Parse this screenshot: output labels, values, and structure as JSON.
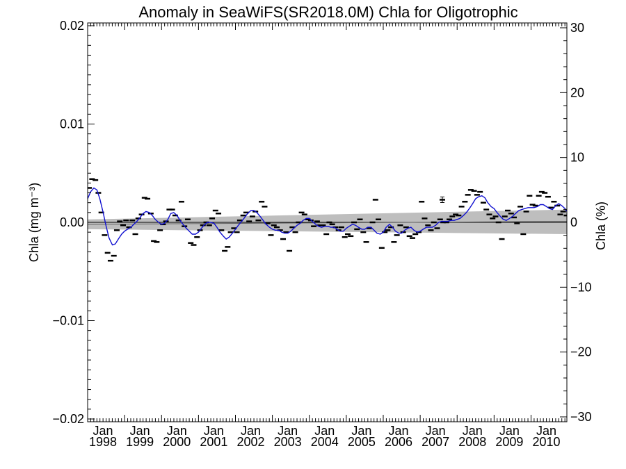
{
  "chart_data": {
    "type": "line",
    "title": "Anomaly in SeaWiFS(SR2018.0M) Chla for Oligotrophic",
    "ylabel_left": "Chla (mg m⁻³)",
    "ylabel_right": "Chla (%)",
    "xlim": [
      1998.0,
      2010.97
    ],
    "ylim_left": [
      -0.0205,
      0.0205
    ],
    "ylim_right": [
      -30,
      30
    ],
    "y_ticks_left": [
      -0.02,
      -0.01,
      0.0,
      0.01,
      0.02
    ],
    "y_tick_labels_left": [
      "−0.02",
      "−0.01",
      "0.00",
      "0.01",
      "0.02"
    ],
    "y_ticks_right": [
      -30,
      -20,
      -10,
      0,
      10,
      20,
      30
    ],
    "y_tick_labels_right": [
      "−30",
      "−20",
      "−10",
      "0",
      "10",
      "20",
      "30"
    ],
    "x_ticks": [
      1998,
      1999,
      2000,
      2001,
      2002,
      2003,
      2004,
      2005,
      2006,
      2007,
      2008,
      2009,
      2010
    ],
    "x_tick_labels": [
      [
        "Jan",
        "1998"
      ],
      [
        "Jan",
        "1999"
      ],
      [
        "Jan",
        "2000"
      ],
      [
        "Jan",
        "2001"
      ],
      [
        "Jan",
        "2002"
      ],
      [
        "Jan",
        "2003"
      ],
      [
        "Jan",
        "2004"
      ],
      [
        "Jan",
        "2005"
      ],
      [
        "Jan",
        "2006"
      ],
      [
        "Jan",
        "2007"
      ],
      [
        "Jan",
        "2008"
      ],
      [
        "Jan",
        "2009"
      ],
      [
        "Jan",
        "2010"
      ]
    ],
    "zero_line": 0.0,
    "trend_band": {
      "x": [
        1998.0,
        2010.97
      ],
      "lower": [
        -0.0007,
        -0.0012
      ],
      "upper": [
        0.0003,
        0.0013
      ],
      "color": "#bebebe"
    },
    "trend_line": {
      "x": [
        1998.0,
        2010.97
      ],
      "y": [
        -0.0002,
        0.0001
      ]
    },
    "series": [
      {
        "style": "monthly-markers",
        "color": "#000000",
        "x": [
          1998.04,
          1998.12,
          1998.21,
          1998.29,
          1998.37,
          1998.46,
          1998.54,
          1998.62,
          1998.71,
          1998.79,
          1998.87,
          1998.96,
          1999.04,
          1999.12,
          1999.21,
          1999.29,
          1999.37,
          1999.46,
          1999.54,
          1999.62,
          1999.71,
          1999.79,
          1999.87,
          1999.96,
          2000.04,
          2000.12,
          2000.21,
          2000.29,
          2000.37,
          2000.46,
          2000.54,
          2000.62,
          2000.71,
          2000.79,
          2000.87,
          2000.96,
          2001.04,
          2001.12,
          2001.21,
          2001.29,
          2001.37,
          2001.46,
          2001.54,
          2001.62,
          2001.71,
          2001.79,
          2001.87,
          2001.96,
          2002.04,
          2002.12,
          2002.21,
          2002.29,
          2002.37,
          2002.46,
          2002.54,
          2002.62,
          2002.71,
          2002.79,
          2002.87,
          2002.96,
          2003.04,
          2003.12,
          2003.21,
          2003.29,
          2003.37,
          2003.46,
          2003.54,
          2003.62,
          2003.71,
          2003.79,
          2003.87,
          2003.96,
          2004.04,
          2004.12,
          2004.21,
          2004.29,
          2004.37,
          2004.46,
          2004.54,
          2004.62,
          2004.71,
          2004.79,
          2004.87,
          2004.96,
          2005.04,
          2005.12,
          2005.21,
          2005.29,
          2005.37,
          2005.46,
          2005.54,
          2005.62,
          2005.71,
          2005.79,
          2005.87,
          2005.96,
          2006.04,
          2006.12,
          2006.21,
          2006.29,
          2006.37,
          2006.46,
          2006.54,
          2006.62,
          2006.71,
          2006.79,
          2006.87,
          2006.96,
          2007.04,
          2007.12,
          2007.21,
          2007.29,
          2007.37,
          2007.46,
          2007.54,
          2007.62,
          2007.71,
          2007.79,
          2007.87,
          2007.96,
          2008.04,
          2008.12,
          2008.21,
          2008.29,
          2008.37,
          2008.46,
          2008.54,
          2008.62,
          2008.71,
          2008.79,
          2008.87,
          2008.96,
          2009.04,
          2009.12,
          2009.21,
          2009.29,
          2009.37,
          2009.46,
          2009.54,
          2009.62,
          2009.71,
          2009.79,
          2009.87,
          2009.96,
          2010.04,
          2010.12,
          2010.21,
          2010.29,
          2010.37,
          2010.46,
          2010.54,
          2010.62,
          2010.71,
          2010.79,
          2010.87,
          2010.96
        ],
        "y": [
          0.0035,
          0.0044,
          0.0043,
          0.003,
          0.001,
          -0.0013,
          -0.0031,
          -0.0039,
          -0.0034,
          -0.0008,
          0.0001,
          -0.0003,
          0.0002,
          -0.0005,
          0.0002,
          -0.0012,
          0.0004,
          0.0008,
          0.0025,
          0.0024,
          0.0009,
          -0.0019,
          -0.002,
          -0.0008,
          -0.0002,
          0.0001,
          0.0013,
          0.0013,
          0.0007,
          0.0002,
          0.0021,
          -0.0004,
          0.0003,
          -0.0021,
          -0.0023,
          -0.0015,
          -0.0008,
          -0.0003,
          0.0,
          -0.0003,
          0.0004,
          0.0012,
          0.0009,
          -0.0008,
          -0.0029,
          -0.0025,
          -0.001,
          -0.0006,
          -0.001,
          0.0002,
          0.0007,
          0.001,
          0.0001,
          0.0006,
          0.0011,
          0.0002,
          0.0021,
          0.0016,
          -0.0001,
          -0.0013,
          -0.0003,
          -0.0005,
          -0.0008,
          -0.0017,
          -0.001,
          -0.0029,
          -0.0005,
          -0.001,
          0.0,
          0.001,
          0.0008,
          0.0003,
          0.0002,
          -0.0004,
          0.0001,
          -0.0003,
          -0.0003,
          -0.0012,
          0.0,
          -0.0002,
          -0.0005,
          -0.0008,
          -0.0005,
          -0.0015,
          -0.0012,
          -0.0014,
          0.0,
          -0.0007,
          0.0003,
          -0.001,
          -0.002,
          -0.0006,
          0.0,
          0.0023,
          0.0003,
          -0.0026,
          -0.001,
          -0.0008,
          -0.0005,
          -0.002,
          -0.0013,
          -0.0003,
          -0.001,
          -0.0005,
          -0.0014,
          -0.0016,
          -0.0012,
          -0.001,
          0.0021,
          0.0004,
          -0.0003,
          -0.0008,
          0.0,
          -0.0006,
          0.0003,
          0.0,
          0.0,
          0.0003,
          0.0006,
          0.0008,
          0.0007,
          0.0016,
          0.0021,
          0.0028,
          0.0033,
          0.0032,
          0.0028,
          0.0031,
          0.002,
          0.0013,
          0.0008,
          0.0004,
          0.0006,
          0.0,
          -0.0017,
          0.0006,
          0.0012,
          0.0009,
          0.0005,
          -0.0001,
          0.0016,
          -0.0012,
          0.0011,
          0.0027,
          0.0018,
          0.0017,
          0.0027,
          0.0031,
          0.003,
          0.0026,
          0.0015,
          0.0021,
          0.0017,
          0.0008,
          0.0011,
          0.0007
        ]
      },
      {
        "style": "smoothed-line",
        "color": "#1010d0",
        "x": [
          1998.0,
          1998.08,
          1998.17,
          1998.25,
          1998.33,
          1998.42,
          1998.5,
          1998.58,
          1998.67,
          1998.75,
          1998.83,
          1998.92,
          1999.0,
          1999.08,
          1999.17,
          1999.25,
          1999.33,
          1999.42,
          1999.5,
          1999.58,
          1999.67,
          1999.75,
          1999.83,
          1999.92,
          2000.0,
          2000.08,
          2000.17,
          2000.25,
          2000.33,
          2000.42,
          2000.5,
          2000.58,
          2000.67,
          2000.75,
          2000.83,
          2000.92,
          2001.0,
          2001.08,
          2001.17,
          2001.25,
          2001.33,
          2001.42,
          2001.5,
          2001.58,
          2001.67,
          2001.75,
          2001.83,
          2001.92,
          2002.0,
          2002.08,
          2002.17,
          2002.25,
          2002.33,
          2002.42,
          2002.5,
          2002.58,
          2002.67,
          2002.75,
          2002.83,
          2002.92,
          2003.0,
          2003.08,
          2003.17,
          2003.25,
          2003.33,
          2003.42,
          2003.5,
          2003.58,
          2003.67,
          2003.75,
          2003.83,
          2003.92,
          2004.0,
          2004.08,
          2004.17,
          2004.25,
          2004.33,
          2004.42,
          2004.5,
          2004.58,
          2004.67,
          2004.75,
          2004.83,
          2004.92,
          2005.0,
          2005.08,
          2005.17,
          2005.25,
          2005.33,
          2005.42,
          2005.5,
          2005.58,
          2005.67,
          2005.75,
          2005.83,
          2005.92,
          2006.0,
          2006.08,
          2006.17,
          2006.25,
          2006.33,
          2006.42,
          2006.5,
          2006.58,
          2006.67,
          2006.75,
          2006.83,
          2006.92,
          2007.0,
          2007.08,
          2007.17,
          2007.25,
          2007.33,
          2007.42,
          2007.5,
          2007.58,
          2007.67,
          2007.75,
          2007.83,
          2007.92,
          2008.0,
          2008.08,
          2008.17,
          2008.25,
          2008.33,
          2008.42,
          2008.5,
          2008.58,
          2008.67,
          2008.75,
          2008.83,
          2008.92,
          2009.0,
          2009.08,
          2009.17,
          2009.25,
          2009.33,
          2009.42,
          2009.5,
          2009.58,
          2009.67,
          2009.75,
          2009.83,
          2009.92,
          2010.0,
          2010.08,
          2010.17,
          2010.25,
          2010.33,
          2010.42,
          2010.5,
          2010.58,
          2010.67,
          2010.75,
          2010.83,
          2010.92,
          2010.97
        ],
        "y": [
          0.0024,
          0.0031,
          0.0035,
          0.0033,
          0.0024,
          0.001,
          -0.0004,
          -0.0016,
          -0.0023,
          -0.0022,
          -0.0017,
          -0.0012,
          -0.0009,
          -0.0007,
          -0.0005,
          -0.0002,
          0.0001,
          0.0005,
          0.0009,
          0.0011,
          0.001,
          0.0007,
          0.0003,
          0.0,
          -0.0002,
          -0.0001,
          0.0003,
          0.0009,
          0.001,
          0.0007,
          0.0002,
          -0.0002,
          -0.0006,
          -0.0009,
          -0.0012,
          -0.0012,
          -0.001,
          -0.0006,
          -0.0002,
          0.0,
          0.0,
          -0.0001,
          -0.0005,
          -0.001,
          -0.0014,
          -0.0017,
          -0.0015,
          -0.0011,
          -0.0007,
          -0.0003,
          0.0001,
          0.0005,
          0.0009,
          0.0012,
          0.0012,
          0.001,
          0.0006,
          0.0002,
          -0.0002,
          -0.0005,
          -0.0007,
          -0.0008,
          -0.0008,
          -0.001,
          -0.0011,
          -0.0011,
          -0.0009,
          -0.0006,
          -0.0003,
          -0.0001,
          0.0002,
          0.0004,
          0.0004,
          0.0001,
          -0.0002,
          -0.0004,
          -0.0005,
          -0.0004,
          -0.0004,
          -0.0005,
          -0.0005,
          -0.0007,
          -0.0009,
          -0.0009,
          -0.0006,
          -0.0004,
          -0.0002,
          -0.0003,
          -0.0005,
          -0.0007,
          -0.0007,
          -0.0005,
          -0.0005,
          -0.0008,
          -0.0011,
          -0.0012,
          -0.001,
          -0.0005,
          -0.0002,
          -0.0005,
          -0.0009,
          -0.0011,
          -0.0011,
          -0.0008,
          -0.0006,
          -0.0005,
          -0.0008,
          -0.001,
          -0.0009,
          -0.0007,
          -0.0005,
          -0.0005,
          -0.0005,
          -0.0003,
          0.0,
          0.0001,
          0.0001,
          0.0001,
          0.0002,
          0.0002,
          0.0003,
          0.0004,
          0.0007,
          0.001,
          0.0014,
          0.0019,
          0.0024,
          0.0026,
          0.0027,
          0.0025,
          0.002,
          0.0016,
          0.0014,
          0.001,
          0.0006,
          0.0003,
          0.0002,
          0.0004,
          0.0006,
          0.0009,
          0.0012,
          0.0013,
          0.0014,
          0.0015,
          0.0015,
          0.0015,
          0.0016,
          0.0018,
          0.0018,
          0.0016,
          0.0014,
          0.0013,
          0.0017,
          0.0019,
          0.0017,
          0.0014,
          0.0011
        ]
      }
    ],
    "highlighted_marker": {
      "x": 2007.6,
      "y": 0.0023,
      "note": "marker with error bar"
    },
    "grid": false
  }
}
